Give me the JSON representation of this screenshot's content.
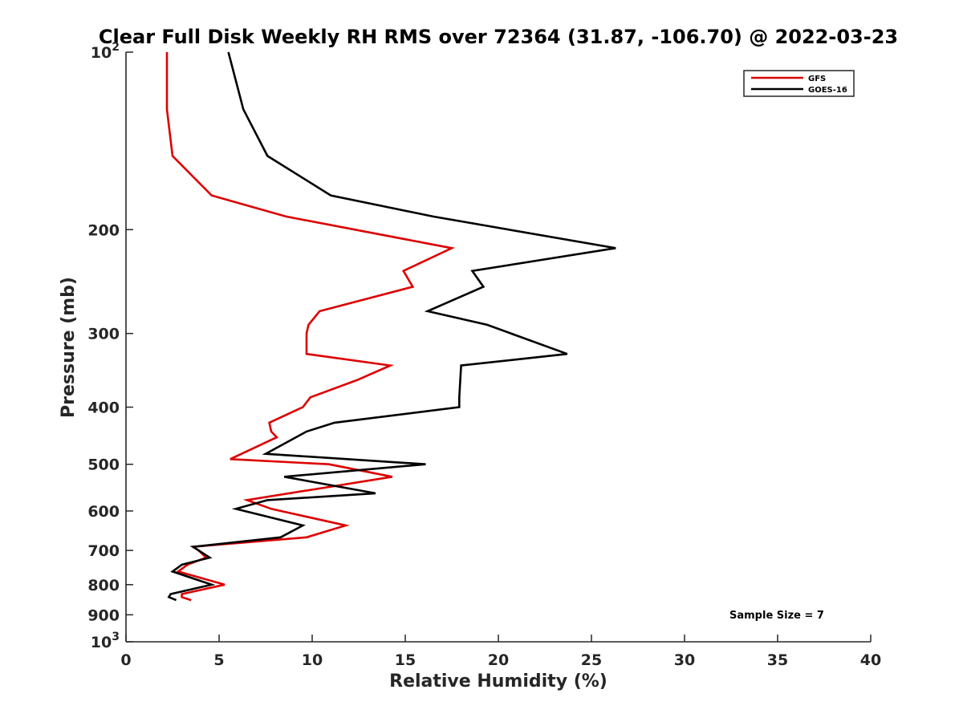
{
  "chart_data": {
    "type": "line",
    "title": "Clear Full Disk Weekly RH RMS over 72364 (31.87, -106.70) @ 2022-03-23",
    "xlabel": "Relative Humidity (%)",
    "ylabel": "Pressure (mb)",
    "xlim": [
      0,
      40
    ],
    "ylim": [
      100,
      1000
    ],
    "y_scale": "log",
    "y_reversed": true,
    "x_ticks": [
      "0",
      "5",
      "10",
      "15",
      "20",
      "25",
      "30",
      "35",
      "40"
    ],
    "y_ticks": [
      {
        "value": 100,
        "base": "10",
        "exp": "2"
      },
      {
        "value": 200,
        "label": "200"
      },
      {
        "value": 300,
        "label": "300"
      },
      {
        "value": 400,
        "label": "400"
      },
      {
        "value": 500,
        "label": "500"
      },
      {
        "value": 600,
        "label": "600"
      },
      {
        "value": 700,
        "label": "700"
      },
      {
        "value": 800,
        "label": "800"
      },
      {
        "value": 900,
        "label": "900"
      },
      {
        "value": 1000,
        "base": "10",
        "exp": "3"
      }
    ],
    "grid": false,
    "legend_position": "top-right",
    "annotation": "Sample Size = 7",
    "series": [
      {
        "name": "GFS",
        "color": "#dd0000",
        "points": [
          [
            2.2,
            100
          ],
          [
            2.2,
            125
          ],
          [
            2.5,
            150
          ],
          [
            4.6,
            175
          ],
          [
            8.6,
            190
          ],
          [
            17.5,
            215
          ],
          [
            14.9,
            235
          ],
          [
            15.4,
            250
          ],
          [
            10.4,
            275
          ],
          [
            9.8,
            290
          ],
          [
            9.7,
            300
          ],
          [
            9.7,
            325
          ],
          [
            14.2,
            340
          ],
          [
            12.4,
            360
          ],
          [
            9.9,
            385
          ],
          [
            9.5,
            400
          ],
          [
            7.7,
            425
          ],
          [
            7.8,
            440
          ],
          [
            8.1,
            450
          ],
          [
            5.6,
            490
          ],
          [
            10.9,
            500
          ],
          [
            14.3,
            525
          ],
          [
            6.5,
            575
          ],
          [
            7.8,
            595
          ],
          [
            11.8,
            635
          ],
          [
            9.7,
            665
          ],
          [
            3.6,
            690
          ],
          [
            3.9,
            700
          ],
          [
            4.3,
            720
          ],
          [
            3.3,
            740
          ],
          [
            2.8,
            760
          ],
          [
            5.3,
            800
          ],
          [
            3,
            830
          ],
          [
            3,
            840
          ],
          [
            3.5,
            850
          ]
        ]
      },
      {
        "name": "GOES-16",
        "color": "#000000",
        "points": [
          [
            5.5,
            100
          ],
          [
            6.3,
            125
          ],
          [
            7.6,
            150
          ],
          [
            11,
            175
          ],
          [
            16.5,
            190
          ],
          [
            26.3,
            215
          ],
          [
            18.6,
            235
          ],
          [
            19.2,
            250
          ],
          [
            16.2,
            275
          ],
          [
            19.4,
            290
          ],
          [
            23.7,
            325
          ],
          [
            18,
            340
          ],
          [
            17.9,
            385
          ],
          [
            17.9,
            400
          ],
          [
            11.2,
            425
          ],
          [
            9.7,
            440
          ],
          [
            7.5,
            480
          ],
          [
            16.1,
            500
          ],
          [
            8.5,
            525
          ],
          [
            13.4,
            560
          ],
          [
            7.6,
            575
          ],
          [
            5.9,
            595
          ],
          [
            9.5,
            635
          ],
          [
            8.3,
            665
          ],
          [
            3.6,
            690
          ],
          [
            4.5,
            720
          ],
          [
            3,
            740
          ],
          [
            2.5,
            760
          ],
          [
            4.6,
            800
          ],
          [
            2.4,
            830
          ],
          [
            2.3,
            840
          ],
          [
            2.7,
            850
          ]
        ]
      }
    ]
  }
}
